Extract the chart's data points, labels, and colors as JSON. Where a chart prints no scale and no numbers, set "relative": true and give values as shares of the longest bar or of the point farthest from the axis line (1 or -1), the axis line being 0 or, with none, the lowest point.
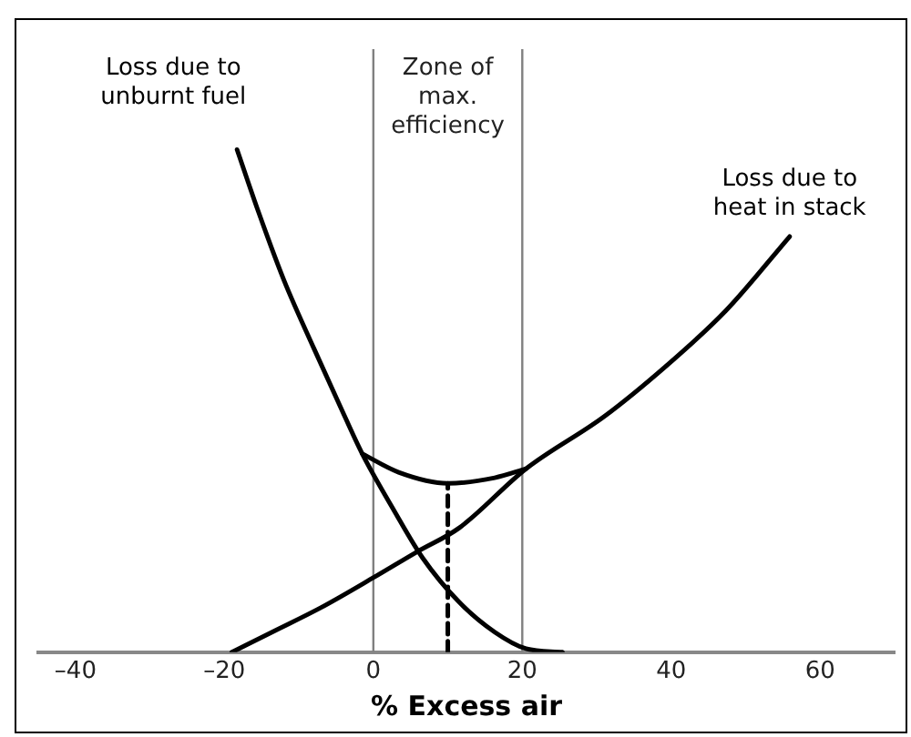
{
  "chart_data": {
    "type": "line",
    "xlabel": "% Excess air",
    "relative": true,
    "xlim": [
      -45,
      70
    ],
    "xticks": [
      {
        "value": -40,
        "label": "–40"
      },
      {
        "value": -20,
        "label": "–20"
      },
      0,
      20,
      40,
      60
    ],
    "grid": false,
    "legend": false,
    "marker": "none",
    "line_style": "solid",
    "series": [
      {
        "name": "Loss due to unburnt fuel",
        "color": "#000000",
        "x": [
          -18.3,
          -15.4,
          -12,
          -8,
          -4.6,
          -1.5,
          2.7,
          6.6,
          11.5,
          16.3,
          20.5,
          25.4
        ],
        "values": [
          1,
          0.875,
          0.74,
          0.605,
          0.494,
          0.395,
          0.284,
          0.188,
          0.1,
          0.04,
          0.007,
          0
        ]
      },
      {
        "name": "Loss due to heat in stack",
        "color": "#000000",
        "x": [
          -19,
          -13.6,
          -7,
          0.2,
          5.9,
          11.5,
          20.5,
          31,
          39.2,
          47.3,
          55.9
        ],
        "values": [
          0,
          0.04,
          0.089,
          0.15,
          0.2,
          0.247,
          0.365,
          0.469,
          0.568,
          0.679,
          0.827
        ]
      },
      {
        "color": "#000000",
        "x": [
          -1.5,
          3.4,
          10,
          16.3,
          20.5
        ],
        "values": [
          0.395,
          0.358,
          0.336,
          0.347,
          0.365
        ]
      },
      {
        "color": "#000000",
        "line_style": "dashed",
        "x": [
          10,
          10
        ],
        "values": [
          0,
          0.336
        ]
      }
    ],
    "ref_lines": [
      {
        "axis": "x",
        "value": 0,
        "color": "#808080"
      },
      {
        "axis": "x",
        "value": 20,
        "color": "#808080"
      }
    ],
    "annotations": [
      "Zone of max. efficiency"
    ]
  }
}
